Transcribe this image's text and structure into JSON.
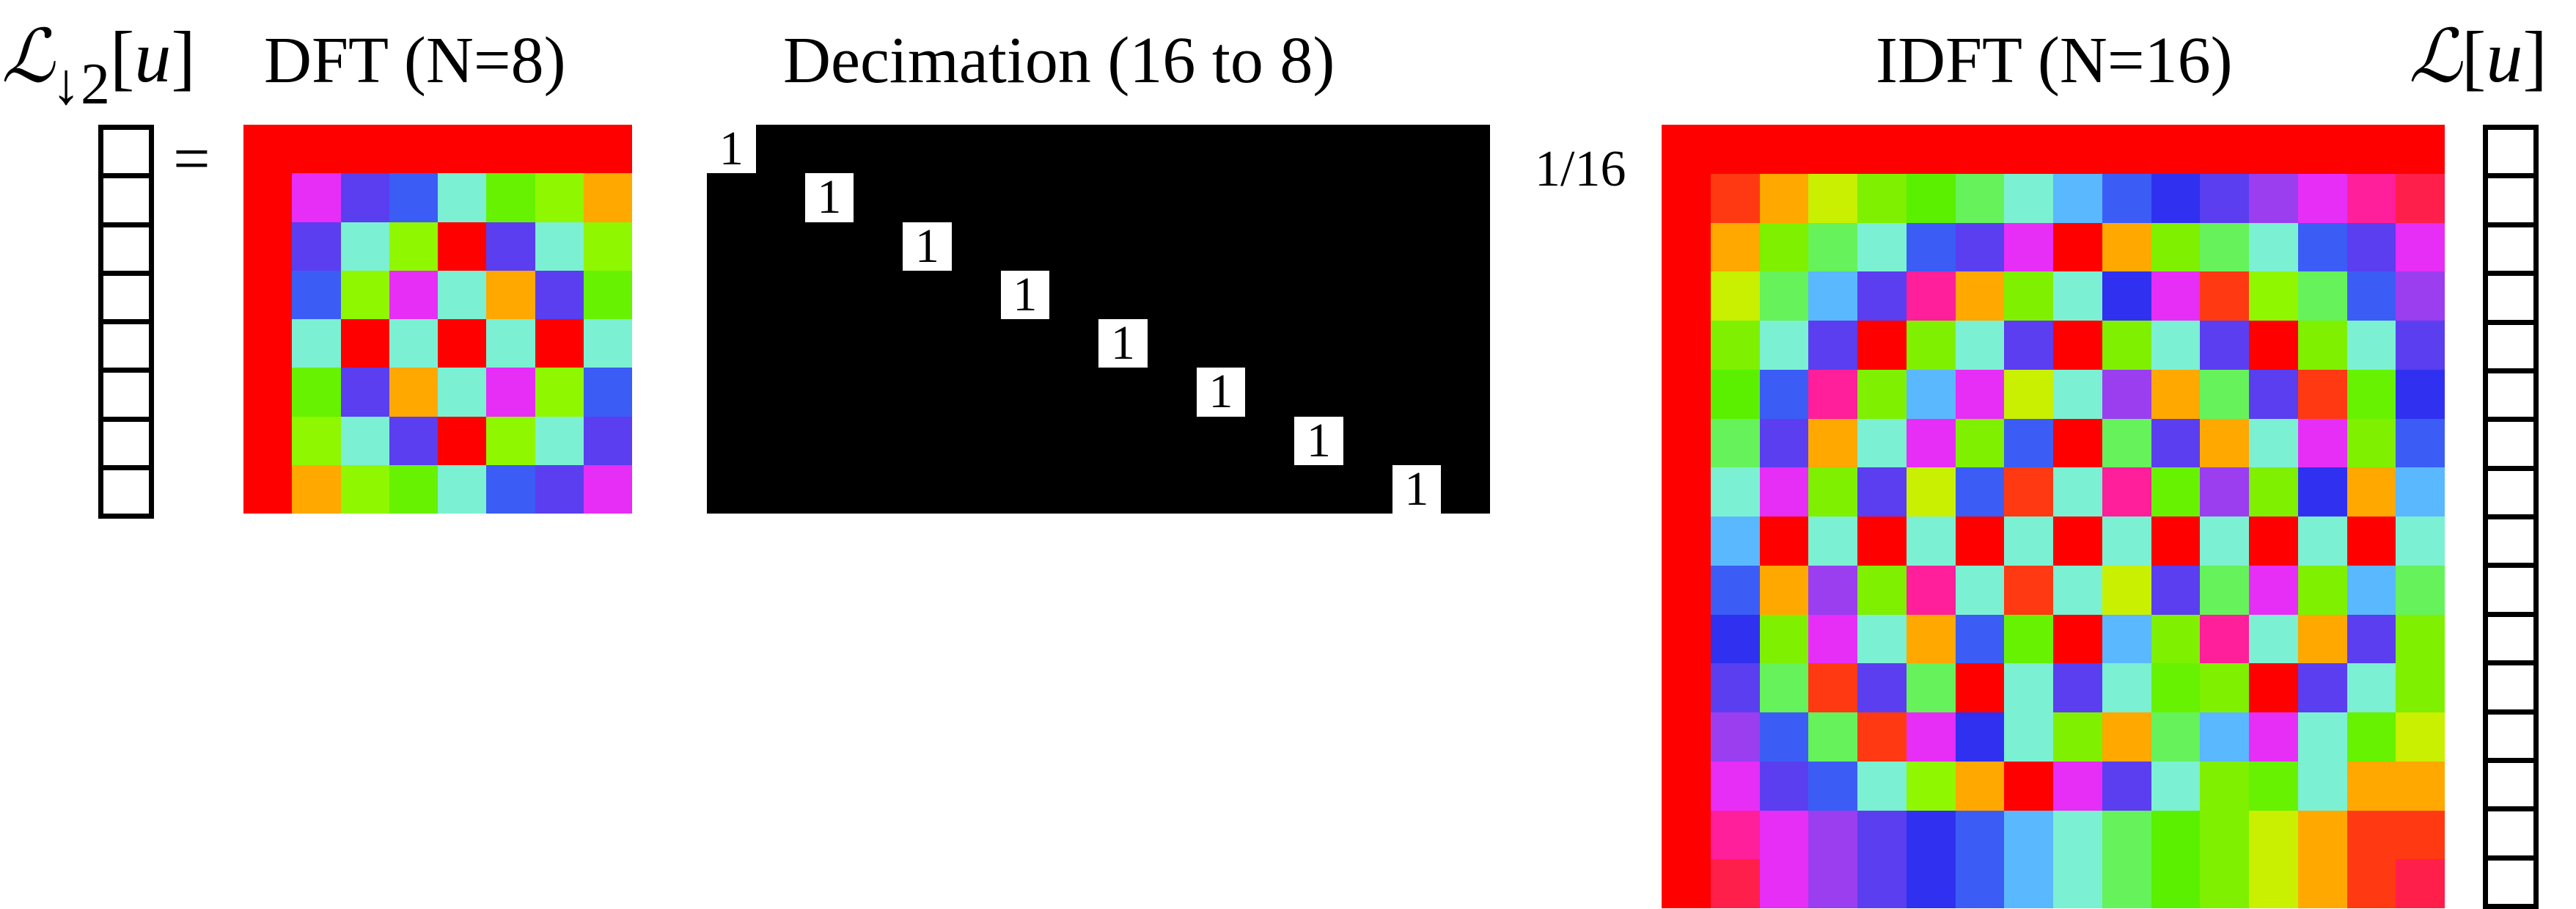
{
  "labels": {
    "downsampled_signal": {
      "script": "ℒ",
      "arrow": "↓",
      "factor": "2",
      "argument": "u"
    },
    "equals": "=",
    "dft_title": "DFT (N=8)",
    "decimation_title": "Decimation (16 to 8)",
    "idft_title": "IDFT (N=16)",
    "scale": "1/16",
    "signal": {
      "script": "ℒ",
      "argument": "u"
    }
  },
  "vectors": {
    "output_length": 8,
    "input_length": 16
  },
  "dft_matrix": {
    "n": 8,
    "colors": [
      [
        "#ff0000",
        "#ff0000",
        "#ff0000",
        "#ff0000",
        "#ff0000",
        "#ff0000",
        "#ff0000",
        "#ff0000"
      ],
      [
        "#ff0000",
        "#e62ef6",
        "#5a3ef0",
        "#3b5df5",
        "#7cf0d2",
        "#66f200",
        "#8ff700",
        "#ffa800"
      ],
      [
        "#ff0000",
        "#5a3ef0",
        "#7cf0d2",
        "#8ff700",
        "#ff0000",
        "#5a3ef0",
        "#7cf0d2",
        "#8ff700"
      ],
      [
        "#ff0000",
        "#3b5df5",
        "#8ff700",
        "#e62ef6",
        "#7cf0d2",
        "#ffa800",
        "#5a3ef0",
        "#66f200"
      ],
      [
        "#ff0000",
        "#7cf0d2",
        "#ff0000",
        "#7cf0d2",
        "#ff0000",
        "#7cf0d2",
        "#ff0000",
        "#7cf0d2"
      ],
      [
        "#ff0000",
        "#66f200",
        "#5a3ef0",
        "#ffa800",
        "#7cf0d2",
        "#e62ef6",
        "#8ff700",
        "#3b5df5"
      ],
      [
        "#ff0000",
        "#8ff700",
        "#7cf0d2",
        "#5a3ef0",
        "#ff0000",
        "#8ff700",
        "#7cf0d2",
        "#5a3ef0"
      ],
      [
        "#ff0000",
        "#ffa800",
        "#8ff700",
        "#66f200",
        "#7cf0d2",
        "#3b5df5",
        "#5a3ef0",
        "#e62ef6"
      ]
    ]
  },
  "decimation_matrix": {
    "rows": 8,
    "cols": 16,
    "entry": "1",
    "fill": "#000000",
    "entry_background": "#ffffff"
  },
  "idft_matrix": {
    "n": 16,
    "colors": [
      [
        "#ff0000",
        "#ff0000",
        "#ff0000",
        "#ff0000",
        "#ff0000",
        "#ff0000",
        "#ff0000",
        "#ff0000",
        "#ff0000",
        "#ff0000",
        "#ff0000",
        "#ff0000",
        "#ff0000",
        "#ff0000",
        "#ff0000",
        "#ff0000"
      ],
      [
        "#ff0000",
        "#ff3a12",
        "#ffa800",
        "#c8f000",
        "#7ef000",
        "#5af000",
        "#66f25a",
        "#7cf0d2",
        "#5ab8ff",
        "#3b5df5",
        "#3030f0",
        "#5a3ef0",
        "#9a3ef0",
        "#e62ef6",
        "#ff1f9a",
        "#ff1f4a"
      ],
      [
        "#ff0000",
        "#ffa800",
        "#7ef000",
        "#66f25a",
        "#7cf0d2",
        "#3b5df5",
        "#5a3ef0",
        "#e62ef6",
        "#ff0000",
        "#ffa800",
        "#7ef000",
        "#66f25a",
        "#7cf0d2",
        "#3b5df5",
        "#5a3ef0",
        "#e62ef6"
      ],
      [
        "#ff0000",
        "#c8f000",
        "#66f25a",
        "#5ab8ff",
        "#5a3ef0",
        "#ff1f9a",
        "#ffa800",
        "#7ef000",
        "#7cf0d2",
        "#3030f0",
        "#e62ef6",
        "#ff3a12",
        "#8ff700",
        "#66f25a",
        "#3b5df5",
        "#9a3ef0"
      ],
      [
        "#ff0000",
        "#7ef000",
        "#7cf0d2",
        "#5a3ef0",
        "#ff0000",
        "#7ef000",
        "#7cf0d2",
        "#5a3ef0",
        "#ff0000",
        "#7ef000",
        "#7cf0d2",
        "#5a3ef0",
        "#ff0000",
        "#7ef000",
        "#7cf0d2",
        "#5a3ef0"
      ],
      [
        "#ff0000",
        "#5af000",
        "#3b5df5",
        "#ff1f9a",
        "#7ef000",
        "#5ab8ff",
        "#e62ef6",
        "#c8f000",
        "#7cf0d2",
        "#9a3ef0",
        "#ffa800",
        "#66f25a",
        "#5a3ef0",
        "#ff3a12",
        "#66f200",
        "#3030f0"
      ],
      [
        "#ff0000",
        "#66f25a",
        "#5a3ef0",
        "#ffa800",
        "#7cf0d2",
        "#e62ef6",
        "#7ef000",
        "#3b5df5",
        "#ff0000",
        "#66f25a",
        "#5a3ef0",
        "#ffa800",
        "#7cf0d2",
        "#e62ef6",
        "#7ef000",
        "#3b5df5"
      ],
      [
        "#ff0000",
        "#7cf0d2",
        "#e62ef6",
        "#7ef000",
        "#5a3ef0",
        "#c8f000",
        "#3b5df5",
        "#ff3a12",
        "#7cf0d2",
        "#ff1f9a",
        "#66f200",
        "#9a3ef0",
        "#7ef000",
        "#3030f0",
        "#ffa800",
        "#5ab8ff"
      ],
      [
        "#ff0000",
        "#5ab8ff",
        "#ff0000",
        "#7cf0d2",
        "#ff0000",
        "#7cf0d2",
        "#ff0000",
        "#7cf0d2",
        "#ff0000",
        "#7cf0d2",
        "#ff0000",
        "#7cf0d2",
        "#ff0000",
        "#7cf0d2",
        "#ff0000",
        "#7cf0d2"
      ],
      [
        "#ff0000",
        "#3b5df5",
        "#ffa800",
        "#9a3ef0",
        "#7ef000",
        "#ff1f9a",
        "#7cf0d2",
        "#ff3a12",
        "#7cf0d2",
        "#c8f000",
        "#5a3ef0",
        "#66f25a",
        "#e62ef6",
        "#7ef000",
        "#5ab8ff",
        "#66f25a"
      ],
      [
        "#ff0000",
        "#3030f0",
        "#7ef000",
        "#e62ef6",
        "#7cf0d2",
        "#ffa800",
        "#3b5df5",
        "#66f200",
        "#ff0000",
        "#5ab8ff",
        "#7ef000",
        "#ff1f9a",
        "#7cf0d2",
        "#ffa800",
        "#5a3ef0",
        "#7ef000"
      ],
      [
        "#ff0000",
        "#5a3ef0",
        "#66f25a",
        "#ff3a12",
        "#5a3ef0",
        "#66f25a",
        "#ff0000",
        "#7cf0d2",
        "#5a3ef0",
        "#7cf0d2",
        "#66f200",
        "#7ef000",
        "#ff0000",
        "#5a3ef0",
        "#7cf0d2",
        "#7ef000"
      ],
      [
        "#ff0000",
        "#9a3ef0",
        "#3b5df5",
        "#66f25a",
        "#ff3a12",
        "#e62ef6",
        "#3030f0",
        "#7cf0d2",
        "#7ef000",
        "#ffa800",
        "#66f25a",
        "#5ab8ff",
        "#e62ef6",
        "#7cf0d2",
        "#66f200",
        "#c8f000"
      ],
      [
        "#ff0000",
        "#e62ef6",
        "#5a3ef0",
        "#3b5df5",
        "#7cf0d2",
        "#8ff700",
        "#ffa800",
        "#ff0000",
        "#e62ef6",
        "#5a3ef0",
        "#7cf0d2",
        "#7ef000",
        "#66f200",
        "#7cf0d2",
        "#ffa800",
        "#ffa800"
      ],
      [
        "#ff0000",
        "#ff1f9a",
        "#e62ef6",
        "#9a3ef0",
        "#5a3ef0",
        "#3030f0",
        "#3b5df5",
        "#5ab8ff",
        "#7cf0d2",
        "#66f25a",
        "#5af000",
        "#7ef000",
        "#c8f000",
        "#ffa800",
        "#ff3a12",
        "#ff3a12"
      ],
      [
        "#ff0000",
        "#ff1f4a",
        "#e62ef6",
        "#9a3ef0",
        "#5a3ef0",
        "#3030f0",
        "#3b5df5",
        "#5ab8ff",
        "#7cf0d2",
        "#66f25a",
        "#5af000",
        "#7ef000",
        "#c8f000",
        "#ffa800",
        "#ff3a12",
        "#ff1f4a"
      ]
    ]
  }
}
